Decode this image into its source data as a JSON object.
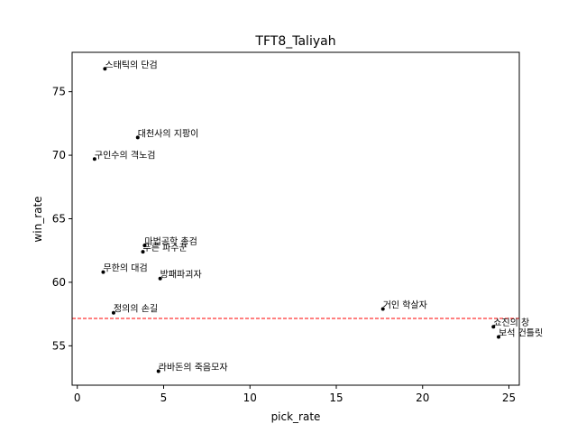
{
  "chart_data": {
    "type": "scatter",
    "title": "TFT8_Taliyah",
    "xlabel": "pick_rate",
    "ylabel": "win_rate",
    "xlim": [
      -0.3,
      25.6
    ],
    "ylim": [
      51.9,
      78.1
    ],
    "xticks": [
      0,
      5,
      10,
      15,
      20,
      25
    ],
    "yticks": [
      55,
      60,
      65,
      70,
      75
    ],
    "grid": false,
    "reference_line": {
      "y": 57.15,
      "color": "#ff0000",
      "style": "dashed"
    },
    "points": [
      {
        "label": "스태틱의 단검",
        "x": 1.6,
        "y": 76.8
      },
      {
        "label": "대천사의 지팡이",
        "x": 3.5,
        "y": 71.4
      },
      {
        "label": "구인수의 격노검",
        "x": 1.0,
        "y": 69.7
      },
      {
        "label": "마법공학 총검",
        "x": 3.9,
        "y": 62.9
      },
      {
        "label": "푸른 파수꾼",
        "x": 3.8,
        "y": 62.4
      },
      {
        "label": "무한의 대검",
        "x": 1.5,
        "y": 60.8
      },
      {
        "label": "방패파괴자",
        "x": 4.8,
        "y": 60.3
      },
      {
        "label": "정의의 손길",
        "x": 2.1,
        "y": 57.6
      },
      {
        "label": "거인 학살자",
        "x": 17.7,
        "y": 57.9
      },
      {
        "label": "쇼진의 창",
        "x": 24.1,
        "y": 56.5
      },
      {
        "label": "보석 건틀릿",
        "x": 24.4,
        "y": 55.7
      },
      {
        "label": "라바돈의 죽음모자",
        "x": 4.7,
        "y": 53.0
      }
    ],
    "colors": {
      "point": "#000000",
      "reference_line": "#ff0000",
      "axes": "#000000"
    }
  }
}
